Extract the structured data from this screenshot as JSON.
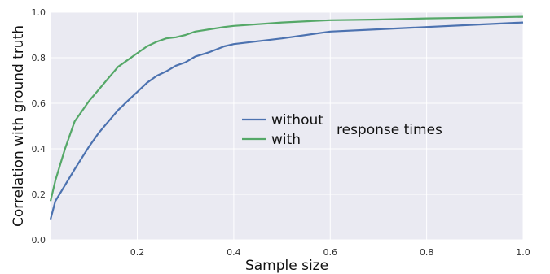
{
  "chart_data": {
    "type": "line",
    "xlabel": "Sample size",
    "ylabel": "Correlation with ground truth",
    "xlim": [
      0.02,
      1.0
    ],
    "ylim": [
      0.0,
      1.0
    ],
    "x_ticks": [
      "0.2",
      "0.4",
      "0.6",
      "0.8",
      "1.0"
    ],
    "y_ticks": [
      "0.0",
      "0.2",
      "0.4",
      "0.6",
      "0.8",
      "1.0"
    ],
    "grid": true,
    "legend_placement": "center",
    "legend_suffix": "response times",
    "series": [
      {
        "name": "without",
        "color": "#4c72b0",
        "x": [
          0.02,
          0.03,
          0.05,
          0.07,
          0.1,
          0.12,
          0.14,
          0.16,
          0.18,
          0.2,
          0.22,
          0.24,
          0.26,
          0.28,
          0.3,
          0.32,
          0.35,
          0.38,
          0.4,
          0.5,
          0.6,
          0.7,
          0.8,
          0.9,
          1.0
        ],
        "y": [
          0.09,
          0.17,
          0.24,
          0.31,
          0.41,
          0.47,
          0.52,
          0.57,
          0.61,
          0.65,
          0.69,
          0.72,
          0.74,
          0.765,
          0.78,
          0.805,
          0.825,
          0.85,
          0.86,
          0.885,
          0.915,
          0.925,
          0.935,
          0.945,
          0.955
        ]
      },
      {
        "name": "with",
        "color": "#55a868",
        "x": [
          0.02,
          0.03,
          0.05,
          0.07,
          0.1,
          0.12,
          0.14,
          0.16,
          0.18,
          0.2,
          0.22,
          0.24,
          0.26,
          0.28,
          0.3,
          0.32,
          0.35,
          0.38,
          0.4,
          0.5,
          0.6,
          0.7,
          0.8,
          0.9,
          1.0
        ],
        "y": [
          0.17,
          0.26,
          0.4,
          0.52,
          0.61,
          0.66,
          0.71,
          0.76,
          0.79,
          0.82,
          0.85,
          0.87,
          0.885,
          0.89,
          0.9,
          0.915,
          0.925,
          0.935,
          0.94,
          0.955,
          0.965,
          0.968,
          0.973,
          0.976,
          0.98
        ]
      }
    ]
  }
}
